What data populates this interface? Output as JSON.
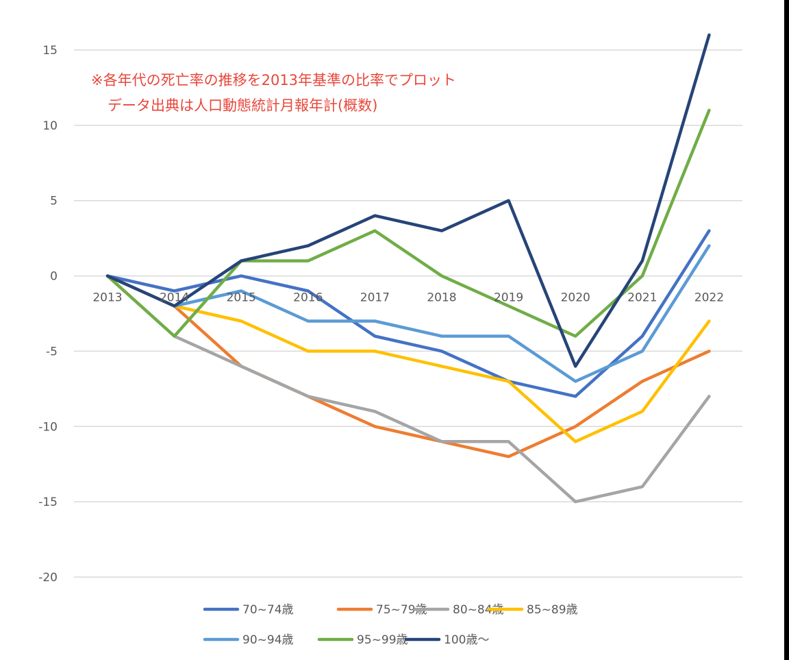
{
  "chart_data": {
    "type": "line",
    "title": "",
    "xlabel": "",
    "ylabel": "",
    "categories": [
      "2013",
      "2014",
      "2015",
      "2016",
      "2017",
      "2018",
      "2019",
      "2020",
      "2021",
      "2022"
    ],
    "ylim": [
      -20,
      15
    ],
    "yticks": [
      "15",
      "10",
      "5",
      "0",
      "-5",
      "-10",
      "-15",
      "-20"
    ],
    "grid": true,
    "legend_position": "bottom",
    "annotations": [
      "※各年代の死亡率の推移を2013年基準の比率でプロット",
      "データ出典は人口動態統計月報年計(概数)"
    ],
    "series": [
      {
        "name": "70~74歳",
        "color": "#4472c4",
        "values": [
          0,
          -1,
          0,
          -1,
          -4,
          -5,
          -7,
          -8,
          -4,
          3
        ]
      },
      {
        "name": "75~79歳",
        "color": "#ed7d31",
        "values": [
          0,
          -2,
          -6,
          -8,
          -10,
          -11,
          -12,
          -10,
          -7,
          -5
        ]
      },
      {
        "name": "80~84歳",
        "color": "#a5a5a5",
        "values": [
          0,
          -4,
          -6,
          -8,
          -9,
          -11,
          -11,
          -15,
          -14,
          -8
        ]
      },
      {
        "name": "85~89歳",
        "color": "#ffc000",
        "values": [
          0,
          -2,
          -3,
          -5,
          -5,
          -6,
          -7,
          -11,
          -9,
          -3
        ]
      },
      {
        "name": "90~94歳",
        "color": "#5b9bd5",
        "values": [
          0,
          -2,
          -1,
          -3,
          -3,
          -4,
          -4,
          -7,
          -5,
          2
        ]
      },
      {
        "name": "95~99歳",
        "color": "#70ad47",
        "values": [
          0,
          -4,
          1,
          1,
          3,
          0,
          -2,
          -4,
          0,
          11
        ]
      },
      {
        "name": "100歳〜",
        "color": "#264478",
        "values": [
          0,
          -2,
          1,
          2,
          4,
          3,
          5,
          -6,
          1,
          16
        ]
      }
    ]
  }
}
